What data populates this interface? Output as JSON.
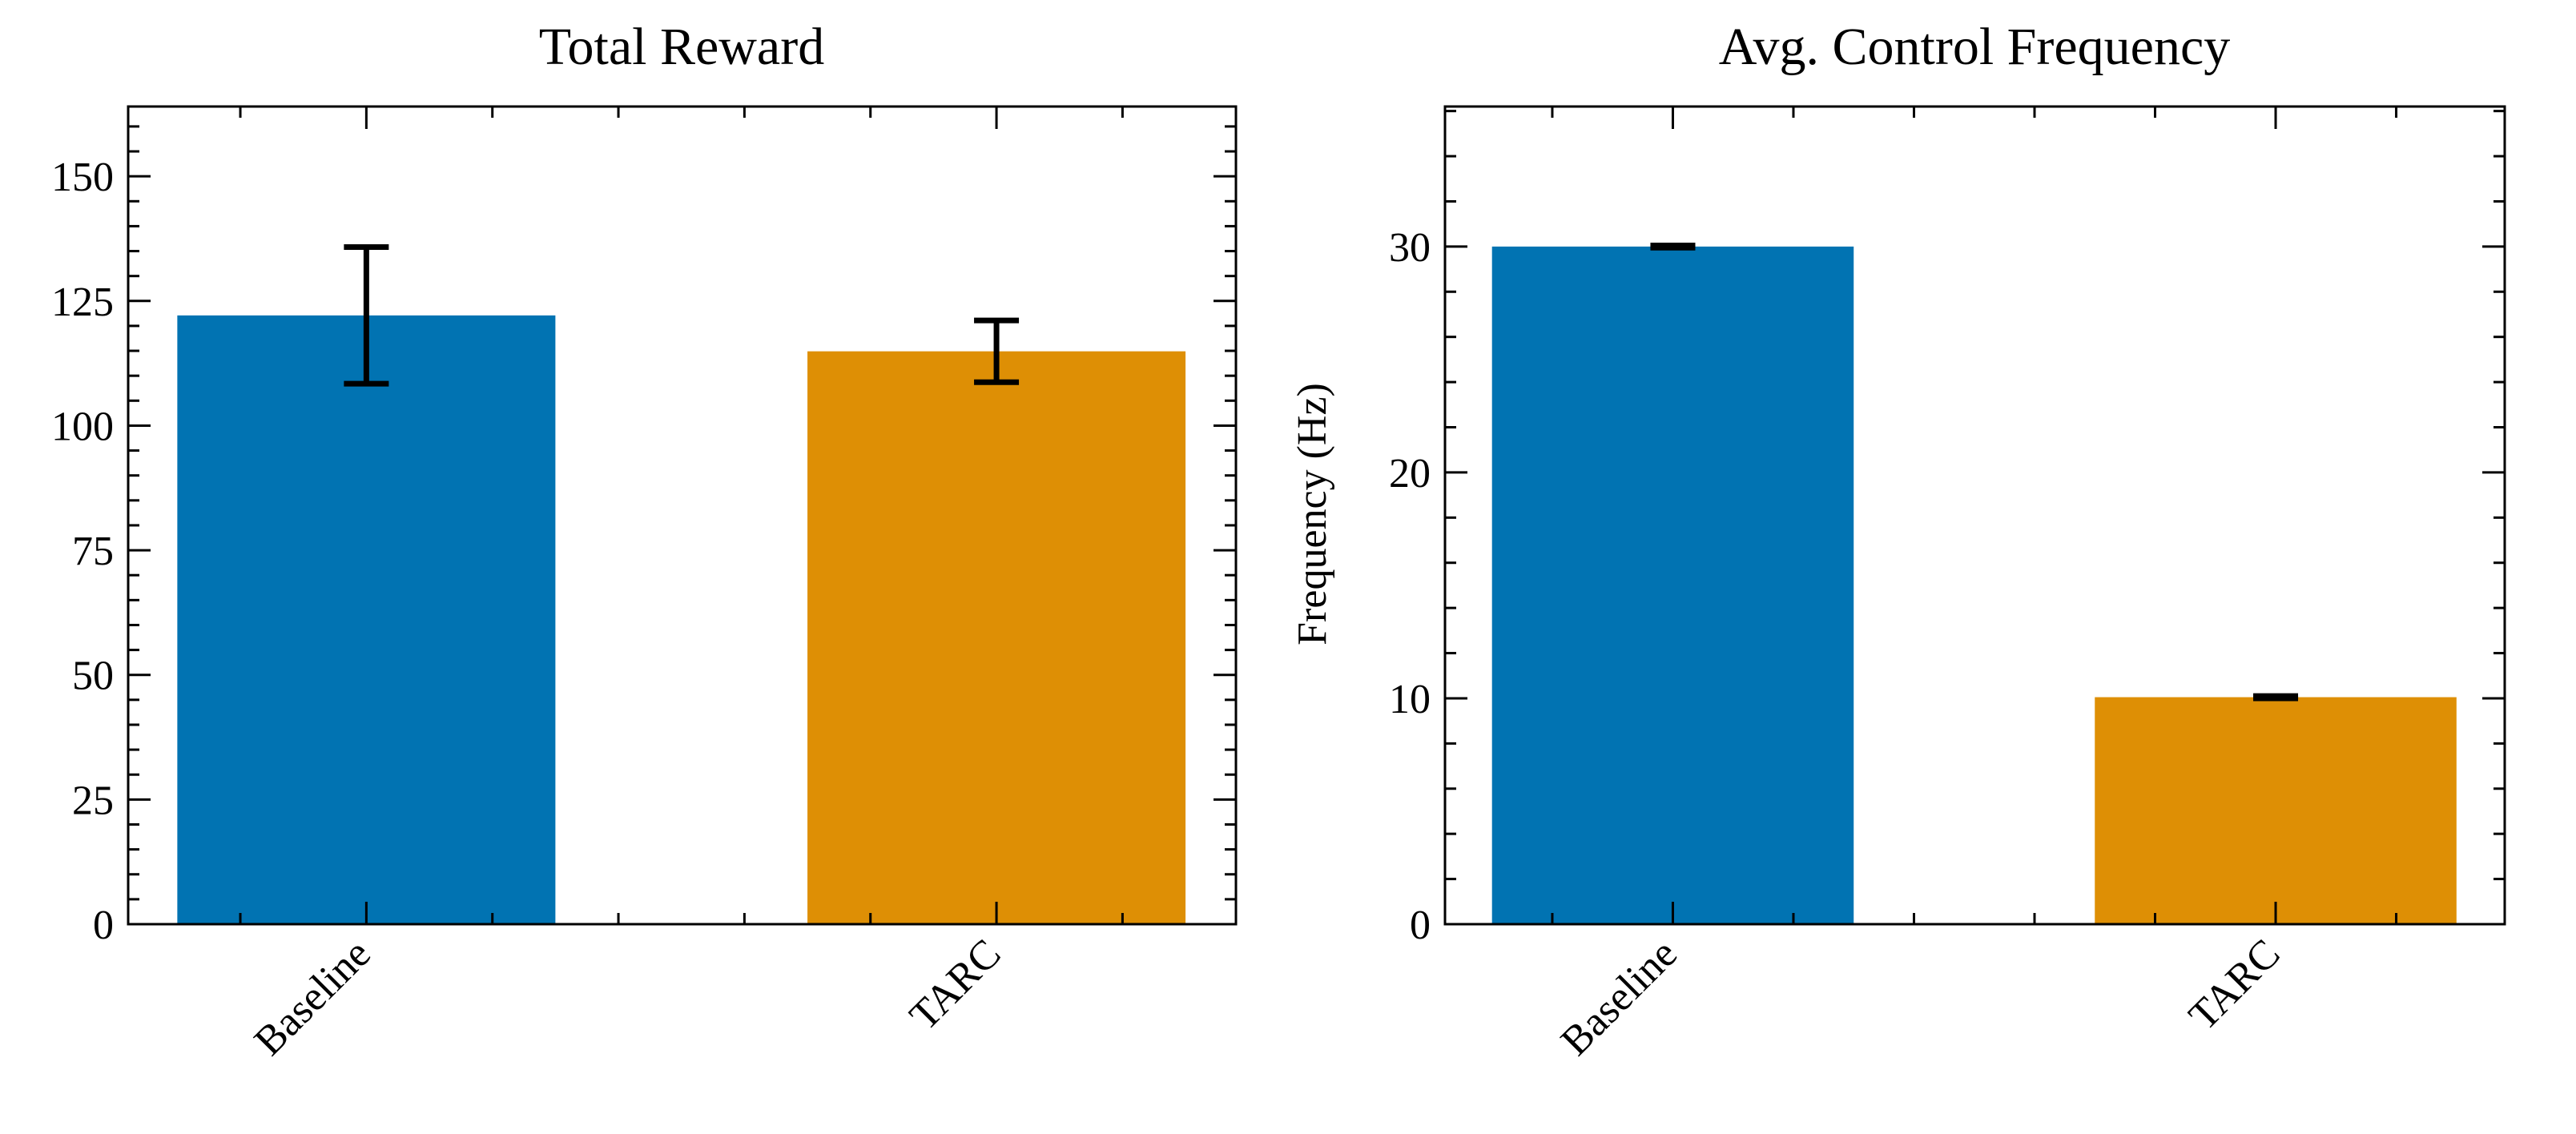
{
  "chart_data": [
    {
      "type": "bar",
      "title": "Total Reward",
      "xlabel": "",
      "ylabel": "",
      "categories": [
        "Baseline",
        "TARC"
      ],
      "values": [
        122.1,
        114.9
      ],
      "errors": [
        13.7,
        6.2
      ],
      "colors": [
        "#0173b2",
        "#de8f05"
      ],
      "ylim": [
        0,
        164
      ],
      "yticks": [
        0,
        25,
        50,
        75,
        100,
        125,
        150
      ],
      "yminor_step": 5,
      "grid": false
    },
    {
      "type": "bar",
      "title": "Avg. Control Frequency",
      "xlabel": "",
      "ylabel": "Frequency (Hz)",
      "categories": [
        "Baseline",
        "TARC"
      ],
      "values": [
        30.0,
        10.05
      ],
      "errors": [
        0.05,
        0.05
      ],
      "colors": [
        "#0173b2",
        "#de8f05"
      ],
      "ylim": [
        0,
        36.2
      ],
      "yticks": [
        0,
        10,
        20,
        30
      ],
      "yminor_step": 2,
      "grid": false
    }
  ]
}
